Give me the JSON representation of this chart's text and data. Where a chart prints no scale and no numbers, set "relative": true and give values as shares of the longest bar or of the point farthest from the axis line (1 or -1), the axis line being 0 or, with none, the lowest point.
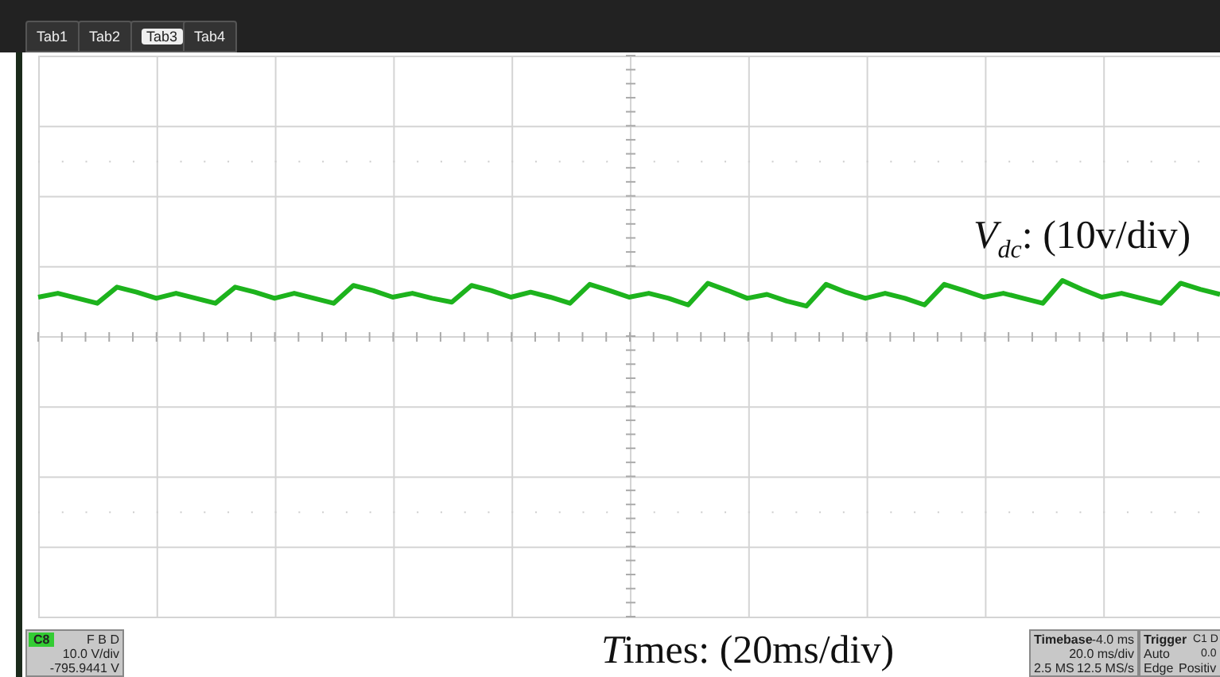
{
  "chart_data": {
    "type": "line",
    "relative": true,
    "ylabel": "V$_{dc}$: (10v/div)",
    "categories": [
      null,
      null,
      null,
      null,
      null,
      null,
      null,
      null,
      null,
      null,
      null,
      null,
      null,
      null,
      null,
      null,
      null,
      null,
      null,
      null,
      null,
      null,
      null,
      null,
      null,
      null,
      null,
      null,
      null,
      null,
      null,
      null,
      null,
      null,
      null,
      null,
      null,
      null,
      null,
      null,
      null,
      null,
      null,
      null,
      null,
      null,
      null,
      null,
      null,
      null,
      null,
      null,
      null,
      null,
      null,
      null,
      null,
      null,
      null,
      null,
      null
    ],
    "series": [
      {
        "color": "#1db31d",
        "values": [
          0.7,
          0.77,
          0.68,
          0.59,
          0.88,
          0.79,
          0.68,
          0.77,
          0.68,
          0.59,
          0.88,
          0.79,
          0.68,
          0.77,
          0.68,
          0.59,
          0.91,
          0.82,
          0.7,
          0.77,
          0.68,
          0.61,
          0.91,
          0.82,
          0.7,
          0.79,
          0.7,
          0.59,
          0.93,
          0.82,
          0.7,
          0.77,
          0.68,
          0.56,
          0.95,
          0.82,
          0.68,
          0.75,
          0.63,
          0.54,
          0.93,
          0.79,
          0.68,
          0.77,
          0.68,
          0.56,
          0.93,
          0.82,
          0.7,
          0.77,
          0.68,
          0.59,
          1,
          0.84,
          0.7,
          0.77,
          0.68,
          0.59,
          0.95,
          0.84,
          0.75
        ]
      }
    ],
    "grid": true,
    "legend": false,
    "marker": "none",
    "line_style": "solid",
    "annotations": [
      "Tab1",
      "Tab2",
      "Tab3",
      "Tab4",
      "C8",
      "F B D",
      "10.0 V/div",
      "-795.9441 V",
      "Timebase",
      "-4.0 ms",
      "20.0 ms/div",
      "2.5 MS",
      "12.5 MS/s",
      "Trigger",
      "C1 D",
      "0.0",
      "Auto",
      "Edge",
      "Positiv",
      "Times: (20ms/div)"
    ]
  }
}
